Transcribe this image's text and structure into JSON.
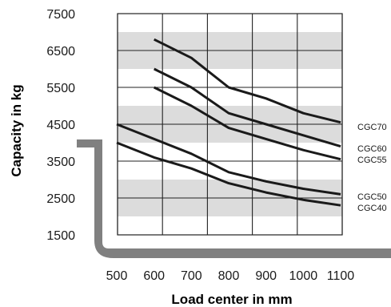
{
  "chart_data": {
    "type": "line",
    "xlabel": "Load center in mm",
    "ylabel": "Capacity in kg",
    "x_ticks": [
      500,
      600,
      700,
      800,
      900,
      1000,
      1100
    ],
    "y_ticks": [
      7500,
      6500,
      5500,
      4500,
      3500,
      2500,
      1500
    ],
    "xlim": [
      500,
      1100
    ],
    "ylim": [
      1500,
      7500
    ],
    "grid": true,
    "shaded_bands": [
      [
        6000,
        7000
      ],
      [
        4000,
        5000
      ],
      [
        2000,
        3000
      ]
    ],
    "colors": {
      "line": "#1a1a1a",
      "band": "#dcdcdc",
      "grid": "#222222",
      "fork": "#808080"
    },
    "series": [
      {
        "name": "CGC70",
        "x": [
          600,
          700,
          800,
          900,
          1000,
          1100
        ],
        "y": [
          6800,
          6300,
          5500,
          5200,
          4800,
          4550
        ]
      },
      {
        "name": "CGC60",
        "x": [
          600,
          700,
          800,
          900,
          1000,
          1100
        ],
        "y": [
          6000,
          5500,
          4800,
          4500,
          4200,
          3900
        ]
      },
      {
        "name": "CGC55",
        "x": [
          600,
          700,
          800,
          900,
          1000,
          1100
        ],
        "y": [
          5500,
          5000,
          4400,
          4100,
          3800,
          3550
        ]
      },
      {
        "name": "CGC50",
        "x": [
          500,
          600,
          700,
          800,
          900,
          1000,
          1100
        ],
        "y": [
          4500,
          4100,
          3700,
          3200,
          2950,
          2750,
          2600
        ]
      },
      {
        "name": "CGC40",
        "x": [
          500,
          600,
          700,
          800,
          900,
          1000,
          1100
        ],
        "y": [
          4000,
          3600,
          3300,
          2900,
          2650,
          2450,
          2300
        ]
      }
    ]
  }
}
